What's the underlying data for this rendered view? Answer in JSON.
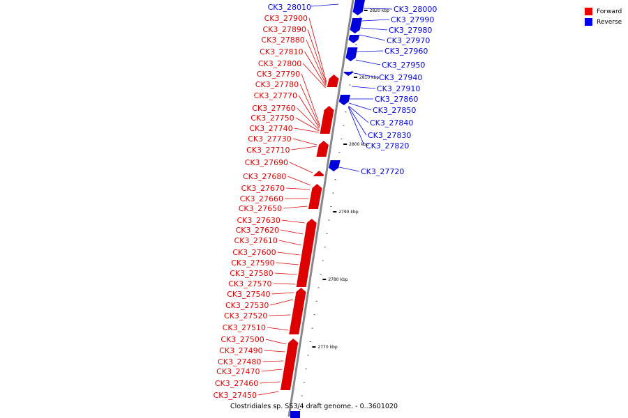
{
  "caption": "Clostridiales sp. SS3/4 draft genome. - 0..3601020",
  "legend": [
    {
      "label": "Forward",
      "color": "#ee0000"
    },
    {
      "label": "Reverse",
      "color": "#0000ee"
    }
  ],
  "colors": {
    "forward": "#ee0000",
    "reverse": "#0000ee",
    "backbone": "#888888"
  },
  "ticks": [
    {
      "label": "2820 kbp",
      "kbp": 2820
    },
    {
      "label": "2810 kbp",
      "kbp": 2810
    },
    {
      "label": "2800 kbp",
      "kbp": 2800
    },
    {
      "label": "2790 kbp",
      "kbp": 2790
    },
    {
      "label": "2780 kbp",
      "kbp": 2780
    },
    {
      "label": "2770 kbp",
      "kbp": 2770
    }
  ],
  "reverse_genes": [
    "CK3_28010",
    "CK3_28000",
    "CK3_27990",
    "CK3_27980",
    "CK3_27970",
    "CK3_27960",
    "CK3_27950",
    "CK3_27940",
    "CK3_27910",
    "CK3_27860",
    "CK3_27850",
    "CK3_27840",
    "CK3_27830",
    "CK3_27820",
    "CK3_27720"
  ],
  "forward_genes": [
    "CK3_27900",
    "CK3_27890",
    "CK3_27880",
    "CK3_27810",
    "CK3_27800",
    "CK3_27790",
    "CK3_27780",
    "CK3_27770",
    "CK3_27760",
    "CK3_27750",
    "CK3_27740",
    "CK3_27730",
    "CK3_27710",
    "CK3_27690",
    "CK3_27680",
    "CK3_27670",
    "CK3_27660",
    "CK3_27650",
    "CK3_27630",
    "CK3_27620",
    "CK3_27610",
    "CK3_27600",
    "CK3_27590",
    "CK3_27580",
    "CK3_27570",
    "CK3_27540",
    "CK3_27530",
    "CK3_27520",
    "CK3_27510",
    "CK3_27500",
    "CK3_27490",
    "CK3_27480",
    "CK3_27470",
    "CK3_27460",
    "CK3_27450"
  ]
}
